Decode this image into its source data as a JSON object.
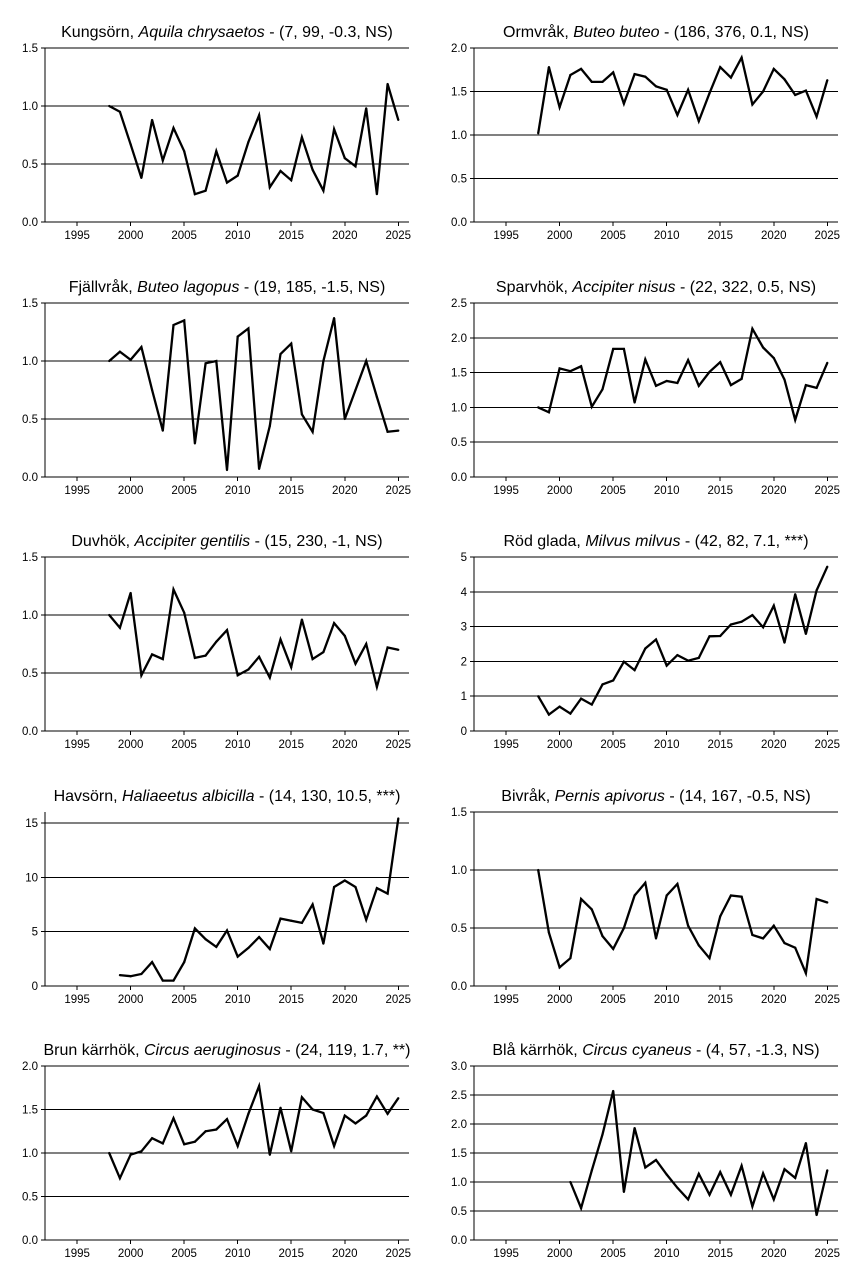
{
  "chart_data": [
    {
      "type": "line",
      "title_common": "Kungsörn, ",
      "title_latin": "Aquila chrysaetos",
      "title_rest": " - (7, 99, -0.3, NS)",
      "xlim": [
        1992,
        2026
      ],
      "ylim": [
        0,
        1.5
      ],
      "yticks": [
        0,
        0.5,
        1,
        1.5
      ],
      "ytick_labels": [
        "0.0",
        "0.5",
        "1.0",
        "1.5"
      ],
      "grid": "horizontal",
      "x": [
        1998,
        1999,
        2000,
        2001,
        2002,
        2003,
        2004,
        2005,
        2006,
        2007,
        2008,
        2009,
        2010,
        2011,
        2012,
        2013,
        2014,
        2015,
        2016,
        2017,
        2018,
        2019,
        2020,
        2021,
        2022,
        2023,
        2024,
        2025
      ],
      "y": [
        1.0,
        0.95,
        0.67,
        0.38,
        0.88,
        0.53,
        0.81,
        0.61,
        0.24,
        0.27,
        0.61,
        0.34,
        0.4,
        0.69,
        0.92,
        0.3,
        0.44,
        0.36,
        0.73,
        0.45,
        0.27,
        0.8,
        0.55,
        0.48,
        0.98,
        0.24,
        1.19,
        0.88
      ]
    },
    {
      "type": "line",
      "title_common": "Ormvråk, ",
      "title_latin": "Buteo buteo",
      "title_rest": " - (186, 376, 0.1, NS)",
      "xlim": [
        1992,
        2026
      ],
      "ylim": [
        0,
        2
      ],
      "yticks": [
        0,
        0.5,
        1,
        1.5,
        2
      ],
      "ytick_labels": [
        "0.0",
        "0.5",
        "1.0",
        "1.5",
        "2.0"
      ],
      "grid": "horizontal",
      "x": [
        1998,
        1999,
        2000,
        2001,
        2002,
        2003,
        2004,
        2005,
        2006,
        2007,
        2008,
        2009,
        2010,
        2011,
        2012,
        2013,
        2014,
        2015,
        2016,
        2017,
        2018,
        2019,
        2020,
        2021,
        2022,
        2023,
        2024,
        2025
      ],
      "y": [
        1.02,
        1.78,
        1.32,
        1.69,
        1.76,
        1.61,
        1.61,
        1.72,
        1.36,
        1.7,
        1.67,
        1.56,
        1.52,
        1.23,
        1.52,
        1.16,
        1.48,
        1.78,
        1.66,
        1.89,
        1.35,
        1.5,
        1.76,
        1.64,
        1.46,
        1.51,
        1.21,
        1.63
      ]
    },
    {
      "type": "line",
      "title_common": "Fjällvråk, ",
      "title_latin": "Buteo lagopus",
      "title_rest": " - (19, 185, -1.5, NS)",
      "xlim": [
        1992,
        2026
      ],
      "ylim": [
        0,
        1.5
      ],
      "yticks": [
        0,
        0.5,
        1,
        1.5
      ],
      "ytick_labels": [
        "0.0",
        "0.5",
        "1.0",
        "1.5"
      ],
      "grid": "horizontal",
      "x": [
        1998,
        1999,
        2000,
        2001,
        2002,
        2003,
        2004,
        2005,
        2006,
        2007,
        2008,
        2009,
        2010,
        2011,
        2012,
        2013,
        2014,
        2015,
        2016,
        2017,
        2018,
        2019,
        2020,
        2021,
        2022,
        2023,
        2024,
        2025
      ],
      "y": [
        1.0,
        1.08,
        1.01,
        1.12,
        0.75,
        0.4,
        1.31,
        1.35,
        0.29,
        0.98,
        1.0,
        0.06,
        1.21,
        1.28,
        0.07,
        0.44,
        1.06,
        1.15,
        0.54,
        0.39,
        1.0,
        1.37,
        0.5,
        0.75,
        1.0,
        0.69,
        0.39,
        0.4
      ]
    },
    {
      "type": "line",
      "title_common": "Sparvhök, ",
      "title_latin": "Accipiter nisus",
      "title_rest": " - (22, 322, 0.5, NS)",
      "xlim": [
        1992,
        2026
      ],
      "ylim": [
        0,
        2.5
      ],
      "yticks": [
        0,
        0.5,
        1,
        1.5,
        2,
        2.5
      ],
      "ytick_labels": [
        "0.0",
        "0.5",
        "1.0",
        "1.5",
        "2.0",
        "2.5"
      ],
      "grid": "horizontal",
      "x": [
        1998,
        1999,
        2000,
        2001,
        2002,
        2003,
        2004,
        2005,
        2006,
        2007,
        2008,
        2009,
        2010,
        2011,
        2012,
        2013,
        2014,
        2015,
        2016,
        2017,
        2018,
        2019,
        2020,
        2021,
        2022,
        2023,
        2024,
        2025
      ],
      "y": [
        1.0,
        0.93,
        1.56,
        1.52,
        1.59,
        1.01,
        1.26,
        1.84,
        1.84,
        1.07,
        1.69,
        1.31,
        1.38,
        1.35,
        1.68,
        1.31,
        1.51,
        1.65,
        1.32,
        1.41,
        2.13,
        1.86,
        1.71,
        1.4,
        0.82,
        1.32,
        1.28,
        1.64
      ]
    },
    {
      "type": "line",
      "title_common": "Duvhök, ",
      "title_latin": "Accipiter gentilis",
      "title_rest": " - (15, 230, -1, NS)",
      "xlim": [
        1992,
        2026
      ],
      "ylim": [
        0,
        1.5
      ],
      "yticks": [
        0,
        0.5,
        1,
        1.5
      ],
      "ytick_labels": [
        "0.0",
        "0.5",
        "1.0",
        "1.5"
      ],
      "grid": "horizontal",
      "x": [
        1998,
        1999,
        2000,
        2001,
        2002,
        2003,
        2004,
        2005,
        2006,
        2007,
        2008,
        2009,
        2010,
        2011,
        2012,
        2013,
        2014,
        2015,
        2016,
        2017,
        2018,
        2019,
        2020,
        2021,
        2022,
        2023,
        2024,
        2025
      ],
      "y": [
        1.0,
        0.89,
        1.19,
        0.48,
        0.66,
        0.62,
        1.22,
        1.02,
        0.63,
        0.65,
        0.77,
        0.87,
        0.48,
        0.53,
        0.64,
        0.46,
        0.79,
        0.55,
        0.96,
        0.62,
        0.68,
        0.93,
        0.82,
        0.58,
        0.75,
        0.38,
        0.72,
        0.7
      ]
    },
    {
      "type": "line",
      "title_common": "Röd glada, ",
      "title_latin": "Milvus milvus",
      "title_rest": " - (42, 82, 7.1, ***)",
      "xlim": [
        1992,
        2026
      ],
      "ylim": [
        0,
        5
      ],
      "yticks": [
        0,
        1,
        2,
        3,
        4,
        5
      ],
      "ytick_labels": [
        "0",
        "1",
        "2",
        "3",
        "4",
        "5"
      ],
      "grid": "horizontal",
      "x": [
        1998,
        1999,
        2000,
        2001,
        2002,
        2003,
        2004,
        2005,
        2006,
        2007,
        2008,
        2009,
        2010,
        2011,
        2012,
        2013,
        2014,
        2015,
        2016,
        2017,
        2018,
        2019,
        2020,
        2021,
        2022,
        2023,
        2024,
        2025
      ],
      "y": [
        1.0,
        0.47,
        0.7,
        0.5,
        0.93,
        0.76,
        1.34,
        1.45,
        1.99,
        1.75,
        2.37,
        2.63,
        1.88,
        2.18,
        2.02,
        2.1,
        2.72,
        2.73,
        3.06,
        3.14,
        3.33,
        2.98,
        3.6,
        2.54,
        3.93,
        2.79,
        4.04,
        4.72
      ]
    },
    {
      "type": "line",
      "title_common": "Havsörn, ",
      "title_latin": "Haliaeetus albicilla",
      "title_rest": " - (14, 130, 10.5, ***)",
      "xlim": [
        1992,
        2026
      ],
      "ylim": [
        0,
        16
      ],
      "yticks": [
        0,
        5,
        10,
        15
      ],
      "ytick_labels": [
        "0",
        "5",
        "10",
        "15"
      ],
      "grid": "horizontal",
      "x": [
        1999,
        2000,
        2001,
        2002,
        2003,
        2004,
        2005,
        2006,
        2007,
        2008,
        2009,
        2010,
        2011,
        2012,
        2013,
        2014,
        2015,
        2016,
        2017,
        2018,
        2019,
        2020,
        2021,
        2022,
        2023,
        2024,
        2025
      ],
      "y": [
        1.0,
        0.9,
        1.1,
        2.2,
        0.5,
        0.5,
        2.2,
        5.3,
        4.3,
        3.6,
        5.1,
        2.7,
        3.5,
        4.5,
        3.4,
        6.2,
        6.0,
        5.8,
        7.5,
        3.9,
        9.1,
        9.7,
        9.1,
        6.1,
        9.0,
        8.5,
        15.4
      ]
    },
    {
      "type": "line",
      "title_common": "Bivråk, ",
      "title_latin": "Pernis apivorus",
      "title_rest": " - (14, 167, -0.5, NS)",
      "xlim": [
        1992,
        2026
      ],
      "ylim": [
        0,
        1.5
      ],
      "yticks": [
        0,
        0.5,
        1,
        1.5
      ],
      "ytick_labels": [
        "0.0",
        "0.5",
        "1.0",
        "1.5"
      ],
      "grid": "horizontal",
      "x": [
        1998,
        1999,
        2000,
        2001,
        2002,
        2003,
        2004,
        2005,
        2006,
        2007,
        2008,
        2009,
        2010,
        2011,
        2012,
        2013,
        2014,
        2015,
        2016,
        2017,
        2018,
        2019,
        2020,
        2021,
        2022,
        2023,
        2024,
        2025
      ],
      "y": [
        1.0,
        0.46,
        0.16,
        0.24,
        0.75,
        0.66,
        0.43,
        0.32,
        0.5,
        0.78,
        0.89,
        0.41,
        0.78,
        0.88,
        0.52,
        0.35,
        0.24,
        0.6,
        0.78,
        0.77,
        0.44,
        0.41,
        0.52,
        0.37,
        0.33,
        0.11,
        0.75,
        0.72
      ]
    },
    {
      "type": "line",
      "title_common": "Brun kärrhök, ",
      "title_latin": "Circus aeruginosus",
      "title_rest": " - (24, 119, 1.7, **)",
      "xlim": [
        1992,
        2026
      ],
      "ylim": [
        0,
        2
      ],
      "yticks": [
        0,
        0.5,
        1,
        1.5,
        2
      ],
      "ytick_labels": [
        "0.0",
        "0.5",
        "1.0",
        "1.5",
        "2.0"
      ],
      "grid": "horizontal",
      "x": [
        1998,
        1999,
        2000,
        2001,
        2002,
        2003,
        2004,
        2005,
        2006,
        2007,
        2008,
        2009,
        2010,
        2011,
        2012,
        2013,
        2014,
        2015,
        2016,
        2017,
        2018,
        2019,
        2020,
        2021,
        2022,
        2023,
        2024,
        2025
      ],
      "y": [
        1.0,
        0.71,
        0.98,
        1.02,
        1.17,
        1.11,
        1.4,
        1.1,
        1.13,
        1.25,
        1.27,
        1.39,
        1.08,
        1.45,
        1.77,
        0.98,
        1.52,
        1.02,
        1.64,
        1.5,
        1.46,
        1.08,
        1.43,
        1.34,
        1.43,
        1.65,
        1.45,
        1.63
      ]
    },
    {
      "type": "line",
      "title_common": "Blå kärrhök, ",
      "title_latin": "Circus cyaneus",
      "title_rest": " - (4, 57, -1.3, NS)",
      "xlim": [
        1992,
        2026
      ],
      "ylim": [
        0,
        3
      ],
      "yticks": [
        0,
        0.5,
        1,
        1.5,
        2,
        2.5,
        3
      ],
      "ytick_labels": [
        "0.0",
        "0.5",
        "1.0",
        "1.5",
        "2.0",
        "2.5",
        "3.0"
      ],
      "grid": "horizontal",
      "x": [
        2001,
        2002,
        2003,
        2004,
        2005,
        2006,
        2007,
        2008,
        2009,
        2010,
        2011,
        2012,
        2013,
        2014,
        2015,
        2016,
        2017,
        2018,
        2019,
        2020,
        2021,
        2022,
        2023,
        2024,
        2025
      ],
      "y": [
        1.0,
        0.55,
        1.2,
        1.82,
        2.57,
        0.83,
        1.93,
        1.25,
        1.38,
        1.13,
        0.9,
        0.7,
        1.14,
        0.78,
        1.17,
        0.78,
        1.28,
        0.58,
        1.15,
        0.7,
        1.22,
        1.07,
        1.67,
        0.43,
        1.2
      ]
    }
  ],
  "xticks": [
    1995,
    2000,
    2005,
    2010,
    2015,
    2020,
    2025
  ],
  "line_color": "#000000",
  "grid_color": "#000000"
}
